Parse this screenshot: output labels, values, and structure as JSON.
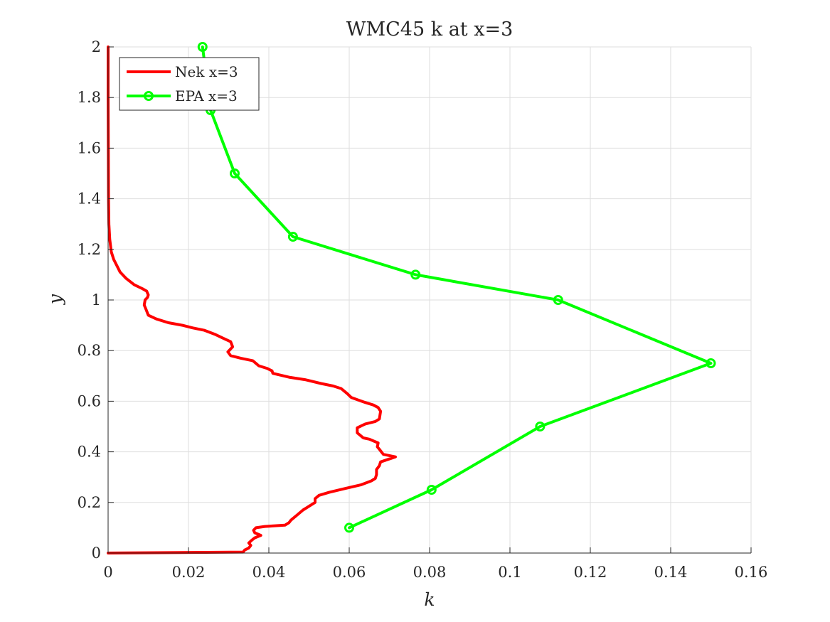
{
  "chart_data": {
    "type": "line",
    "title": "WMC45 k at x=3",
    "xlabel": "k",
    "ylabel": "y",
    "xlim": [
      0,
      0.16
    ],
    "ylim": [
      0,
      2
    ],
    "xticks": [
      0,
      0.02,
      0.04,
      0.06,
      0.08,
      0.1,
      0.12,
      0.14,
      0.16
    ],
    "xtick_labels": [
      "0",
      "0.02",
      "0.04",
      "0.06",
      "0.08",
      "0.1",
      "0.12",
      "0.14",
      "0.16"
    ],
    "yticks": [
      0,
      0.2,
      0.4,
      0.6,
      0.8,
      1,
      1.2,
      1.4,
      1.6,
      1.8,
      2
    ],
    "ytick_labels": [
      "0",
      "0.2",
      "0.4",
      "0.6",
      "0.8",
      "1",
      "1.2",
      "1.4",
      "1.6",
      "1.8",
      "2"
    ],
    "grid": true,
    "legend_position": "top-left",
    "series": [
      {
        "name": "Nek x=3",
        "color": "#ff0000",
        "marker": "none",
        "points": [
          [
            0,
            0
          ],
          [
            0.0336,
            0.004
          ],
          [
            0.034,
            0.012
          ],
          [
            0.035,
            0.02
          ],
          [
            0.0355,
            0.03
          ],
          [
            0.035,
            0.04
          ],
          [
            0.0357,
            0.05
          ],
          [
            0.0365,
            0.06
          ],
          [
            0.038,
            0.07
          ],
          [
            0.0365,
            0.08
          ],
          [
            0.0362,
            0.09
          ],
          [
            0.0368,
            0.1
          ],
          [
            0.039,
            0.105
          ],
          [
            0.044,
            0.11
          ],
          [
            0.045,
            0.12
          ],
          [
            0.0455,
            0.13
          ],
          [
            0.047,
            0.15
          ],
          [
            0.0485,
            0.17
          ],
          [
            0.0495,
            0.18
          ],
          [
            0.0515,
            0.2
          ],
          [
            0.0515,
            0.215
          ],
          [
            0.0525,
            0.228
          ],
          [
            0.055,
            0.24
          ],
          [
            0.059,
            0.255
          ],
          [
            0.063,
            0.27
          ],
          [
            0.0655,
            0.285
          ],
          [
            0.0665,
            0.295
          ],
          [
            0.0668,
            0.31
          ],
          [
            0.0668,
            0.33
          ],
          [
            0.0675,
            0.345
          ],
          [
            0.0678,
            0.36
          ],
          [
            0.0715,
            0.38
          ],
          [
            0.0685,
            0.39
          ],
          [
            0.068,
            0.4
          ],
          [
            0.0675,
            0.41
          ],
          [
            0.067,
            0.42
          ],
          [
            0.0672,
            0.435
          ],
          [
            0.065,
            0.45
          ],
          [
            0.0635,
            0.455
          ],
          [
            0.062,
            0.475
          ],
          [
            0.062,
            0.495
          ],
          [
            0.064,
            0.51
          ],
          [
            0.0665,
            0.52
          ],
          [
            0.0675,
            0.53
          ],
          [
            0.0678,
            0.56
          ],
          [
            0.0672,
            0.575
          ],
          [
            0.066,
            0.585
          ],
          [
            0.064,
            0.595
          ],
          [
            0.0622,
            0.605
          ],
          [
            0.0605,
            0.615
          ],
          [
            0.0595,
            0.63
          ],
          [
            0.058,
            0.65
          ],
          [
            0.056,
            0.66
          ],
          [
            0.053,
            0.67
          ],
          [
            0.049,
            0.685
          ],
          [
            0.045,
            0.695
          ],
          [
            0.041,
            0.71
          ],
          [
            0.0408,
            0.72
          ],
          [
            0.0395,
            0.73
          ],
          [
            0.0375,
            0.74
          ],
          [
            0.036,
            0.76
          ],
          [
            0.033,
            0.77
          ],
          [
            0.0305,
            0.78
          ],
          [
            0.0298,
            0.795
          ],
          [
            0.031,
            0.815
          ],
          [
            0.0305,
            0.835
          ],
          [
            0.0285,
            0.85
          ],
          [
            0.0265,
            0.865
          ],
          [
            0.024,
            0.88
          ],
          [
            0.021,
            0.89
          ],
          [
            0.0185,
            0.9
          ],
          [
            0.015,
            0.91
          ],
          [
            0.012,
            0.925
          ],
          [
            0.01,
            0.94
          ],
          [
            0.0095,
            0.96
          ],
          [
            0.009,
            0.98
          ],
          [
            0.0092,
            1
          ],
          [
            0.0098,
            1.01
          ],
          [
            0.01,
            1.02
          ],
          [
            0.0096,
            1.035
          ],
          [
            0.0085,
            1.045
          ],
          [
            0.0065,
            1.06
          ],
          [
            0.0045,
            1.085
          ],
          [
            0.003,
            1.11
          ],
          [
            0.0022,
            1.135
          ],
          [
            0.0014,
            1.16
          ],
          [
            0.0008,
            1.19
          ],
          [
            0.0004,
            1.24
          ],
          [
            0.0002,
            1.3
          ],
          [
            0.0001,
            1.4
          ],
          [
            5e-05,
            1.6
          ],
          [
            0,
            1.8
          ],
          [
            0,
            2
          ]
        ]
      },
      {
        "name": "EPA x=3",
        "color": "#00ff00",
        "marker": "circle",
        "points": [
          [
            0.06,
            0.1
          ],
          [
            0.0805,
            0.25
          ],
          [
            0.1075,
            0.5
          ],
          [
            0.15,
            0.75
          ],
          [
            0.112,
            1
          ],
          [
            0.0765,
            1.1
          ],
          [
            0.046,
            1.25
          ],
          [
            0.0315,
            1.5
          ],
          [
            0.0255,
            1.75
          ],
          [
            0.0235,
            2
          ]
        ]
      }
    ]
  }
}
